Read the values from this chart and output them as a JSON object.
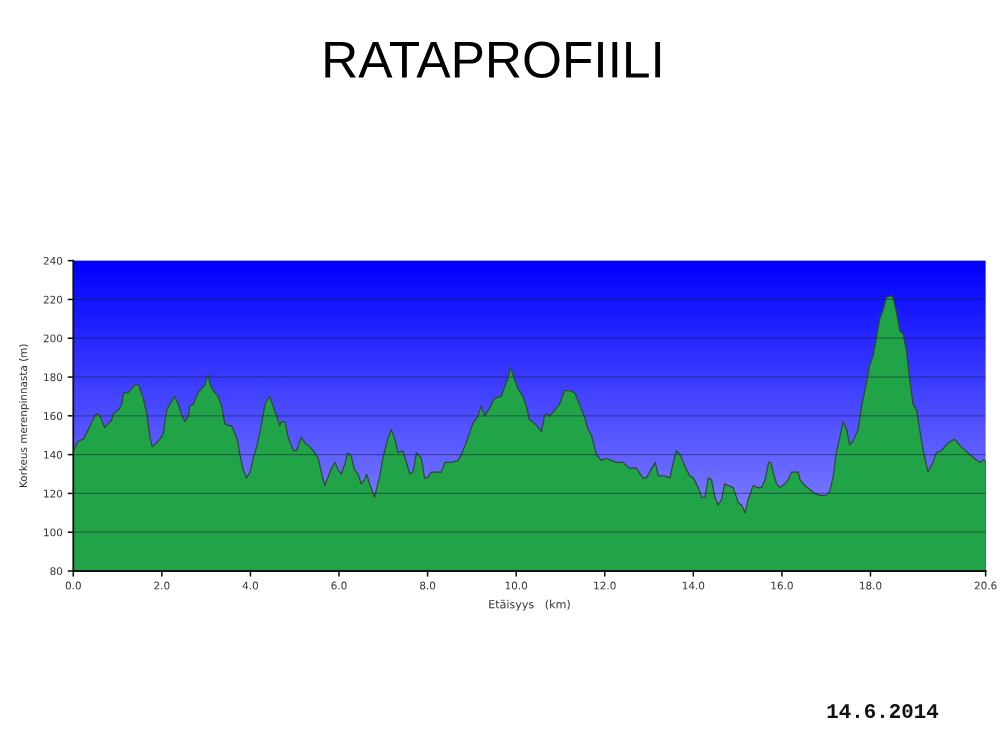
{
  "chart_data": {
    "type": "area",
    "title": "RATAPROFIILI",
    "xlabel": "Etäisyys   (km)",
    "ylabel": "Korkeus merenpinnasta (m)",
    "annotations": [
      "14.6.2014"
    ],
    "x": [
      0.0,
      0.11,
      0.23,
      0.34,
      0.49,
      0.53,
      0.6,
      0.71,
      0.79,
      0.87,
      0.9,
      1.02,
      1.09,
      1.14,
      1.24,
      1.32,
      1.39,
      1.47,
      1.58,
      1.66,
      1.73,
      1.78,
      1.88,
      1.99,
      2.03,
      2.11,
      2.18,
      2.29,
      2.37,
      2.44,
      2.52,
      2.6,
      2.63,
      2.71,
      2.82,
      2.9,
      2.97,
      3.01,
      3.05,
      3.08,
      3.16,
      3.27,
      3.35,
      3.42,
      3.5,
      3.57,
      3.65,
      3.72,
      3.76,
      3.84,
      3.91,
      3.99,
      4.06,
      4.14,
      4.21,
      4.33,
      4.4,
      4.44,
      4.51,
      4.59,
      4.66,
      4.7,
      4.78,
      4.85,
      4.97,
      5.04,
      5.15,
      5.23,
      5.34,
      5.42,
      5.53,
      5.6,
      5.68,
      5.76,
      5.83,
      5.91,
      5.98,
      6.05,
      6.13,
      6.2,
      6.28,
      6.35,
      6.43,
      6.5,
      6.58,
      6.62,
      6.69,
      6.8,
      6.92,
      6.99,
      7.11,
      7.18,
      7.26,
      7.33,
      7.44,
      7.52,
      7.6,
      7.67,
      7.75,
      7.86,
      7.93,
      8.0,
      8.08,
      8.2,
      8.31,
      8.39,
      8.54,
      8.69,
      8.76,
      8.87,
      9.02,
      9.14,
      9.21,
      9.29,
      9.4,
      9.51,
      9.66,
      9.74,
      9.81,
      9.87,
      9.93,
      10.04,
      10.15,
      10.23,
      10.3,
      10.42,
      10.57,
      10.64,
      10.68,
      10.76,
      10.87,
      10.98,
      11.09,
      11.2,
      11.32,
      11.43,
      11.55,
      11.62,
      11.7,
      11.81,
      11.92,
      12.03,
      12.15,
      12.26,
      12.41,
      12.56,
      12.71,
      12.86,
      12.94,
      13.04,
      13.14,
      13.21,
      13.36,
      13.47,
      13.55,
      13.62,
      13.7,
      13.81,
      13.92,
      14.0,
      14.11,
      14.19,
      14.26,
      14.34,
      14.41,
      14.49,
      14.56,
      14.64,
      14.71,
      14.79,
      14.9,
      15.02,
      15.09,
      15.17,
      15.24,
      15.35,
      15.47,
      15.54,
      15.62,
      15.7,
      15.75,
      15.8,
      15.88,
      15.95,
      16.07,
      16.14,
      16.22,
      16.29,
      16.37,
      16.41,
      16.52,
      16.63,
      16.74,
      16.86,
      16.99,
      17.08,
      17.16,
      17.23,
      17.31,
      17.38,
      17.46,
      17.53,
      17.61,
      17.72,
      17.8,
      17.91,
      17.98,
      18.06,
      18.14,
      18.21,
      18.29,
      18.36,
      18.47,
      18.51,
      18.59,
      18.66,
      18.74,
      18.81,
      18.89,
      18.96,
      19.04,
      19.11,
      19.19,
      19.3,
      19.41,
      19.49,
      19.6,
      19.75,
      19.9,
      20.05,
      20.2,
      20.35,
      20.47,
      20.53,
      20.6
    ],
    "series": [
      {
        "color": "#21a347",
        "values": [
          142,
          147,
          148,
          153,
          160,
          161,
          160,
          154,
          156,
          158,
          161,
          163,
          166,
          172,
          172,
          174,
          176,
          176,
          169,
          161,
          149,
          144,
          146,
          149,
          151,
          163,
          166,
          170,
          166,
          161,
          157,
          160,
          165,
          166,
          172,
          174,
          176,
          179,
          181,
          177,
          173,
          170,
          165,
          156,
          155,
          155,
          151,
          146,
          140,
          132,
          128,
          131,
          138,
          144,
          151,
          166,
          169,
          170,
          165,
          160,
          155,
          157,
          157,
          149,
          142,
          142,
          149,
          146,
          144,
          142,
          138,
          131,
          124,
          129,
          133,
          136,
          132,
          130,
          135,
          141,
          139,
          132,
          130,
          125,
          127,
          130,
          125,
          118,
          129,
          138,
          149,
          153,
          148,
          141,
          142,
          136,
          130,
          131,
          141,
          138,
          128,
          128,
          131,
          131,
          131,
          136,
          136,
          137,
          140,
          146,
          156,
          160,
          165,
          160,
          164,
          169,
          170,
          175,
          179,
          185,
          181,
          174,
          170,
          165,
          158,
          156,
          152,
          160,
          161,
          160,
          163,
          166,
          173,
          173,
          172,
          166,
          159,
          153,
          150,
          140,
          137,
          138,
          137,
          136,
          136,
          133,
          133,
          128,
          128,
          132,
          136,
          129,
          129,
          128,
          136,
          142,
          140,
          134,
          129,
          128,
          123,
          118,
          118,
          128,
          127,
          118,
          114,
          117,
          125,
          124,
          123,
          115,
          114,
          110,
          117,
          124,
          123,
          123,
          127,
          136,
          136,
          131,
          125,
          123,
          125,
          127,
          131,
          131,
          131,
          127,
          124,
          122,
          120,
          119,
          119,
          121,
          129,
          141,
          149,
          157,
          153,
          145,
          147,
          153,
          165,
          177,
          186,
          191,
          201,
          210,
          215,
          221,
          222,
          221,
          213,
          204,
          202,
          194,
          178,
          166,
          163,
          153,
          142,
          131,
          136,
          141,
          142,
          146,
          148,
          144,
          141,
          138,
          136,
          137,
          137
        ]
      }
    ],
    "xlim": [
      0,
      20.6
    ],
    "ylim": [
      80,
      240
    ],
    "xticks": [
      {
        "value": 0,
        "label": "0.0"
      },
      {
        "value": 2,
        "label": "2.0"
      },
      {
        "value": 4,
        "label": "4.0"
      },
      {
        "value": 6,
        "label": "6.0"
      },
      {
        "value": 8,
        "label": "8.0"
      },
      {
        "value": 10,
        "label": "10.0"
      },
      {
        "value": 12,
        "label": "12.0"
      },
      {
        "value": 14,
        "label": "14.0"
      },
      {
        "value": 16,
        "label": "16.0"
      },
      {
        "value": 18,
        "label": "18.0"
      },
      20.6
    ],
    "yticks": [
      80,
      100,
      120,
      140,
      160,
      180,
      200,
      220,
      240
    ],
    "grid": "y"
  }
}
